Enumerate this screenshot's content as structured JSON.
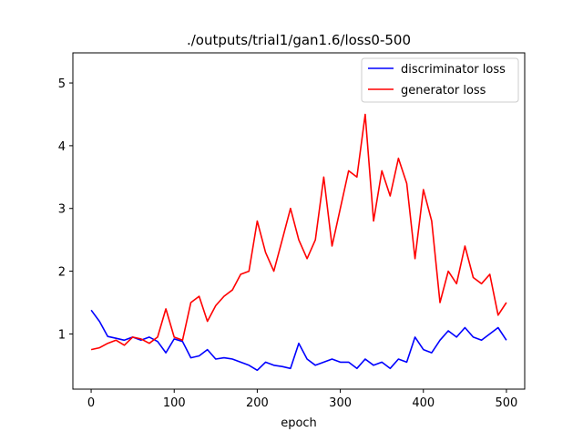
{
  "chart_data": {
    "type": "line",
    "title": "./outputs/trial1/gan1.6/loss0-500",
    "xlabel": "epoch",
    "ylabel": "",
    "xlim": [
      -22,
      522
    ],
    "ylim": [
      0.12,
      5.48
    ],
    "xticks": [
      0,
      100,
      200,
      300,
      400,
      500
    ],
    "yticks": [
      1,
      2,
      3,
      4,
      5
    ],
    "grid": false,
    "legend_position": "top-right",
    "x": [
      0,
      10,
      20,
      30,
      40,
      50,
      60,
      70,
      80,
      90,
      100,
      110,
      120,
      130,
      140,
      150,
      160,
      170,
      180,
      190,
      200,
      210,
      220,
      230,
      240,
      250,
      260,
      270,
      280,
      290,
      300,
      310,
      320,
      330,
      340,
      350,
      360,
      370,
      380,
      390,
      400,
      410,
      420,
      430,
      440,
      450,
      460,
      470,
      480,
      490,
      500
    ],
    "series": [
      {
        "name": "discriminator loss",
        "color": "#0000ff",
        "values": [
          1.38,
          1.2,
          0.96,
          0.93,
          0.9,
          0.95,
          0.9,
          0.95,
          0.88,
          0.7,
          0.92,
          0.88,
          0.62,
          0.65,
          0.75,
          0.6,
          0.62,
          0.6,
          0.55,
          0.5,
          0.42,
          0.55,
          0.5,
          0.48,
          0.45,
          0.85,
          0.6,
          0.5,
          0.55,
          0.6,
          0.55,
          0.55,
          0.45,
          0.6,
          0.5,
          0.55,
          0.45,
          0.6,
          0.55,
          0.95,
          0.75,
          0.7,
          0.9,
          1.05,
          0.95,
          1.1,
          0.95,
          0.9,
          1.0,
          1.1,
          0.9
        ]
      },
      {
        "name": "generator loss",
        "color": "#ff0000",
        "values": [
          0.75,
          0.78,
          0.85,
          0.9,
          0.82,
          0.95,
          0.92,
          0.85,
          0.95,
          1.4,
          0.95,
          0.9,
          1.5,
          1.6,
          1.2,
          1.45,
          1.6,
          1.7,
          1.95,
          2.0,
          2.8,
          2.3,
          2.0,
          2.5,
          3.0,
          2.5,
          2.2,
          2.5,
          3.5,
          2.4,
          3.0,
          3.6,
          3.5,
          4.5,
          2.8,
          3.6,
          3.2,
          3.8,
          3.4,
          2.2,
          3.3,
          2.8,
          1.5,
          2.0,
          1.8,
          2.4,
          1.9,
          1.8,
          1.95,
          1.3,
          1.5
        ]
      }
    ]
  }
}
